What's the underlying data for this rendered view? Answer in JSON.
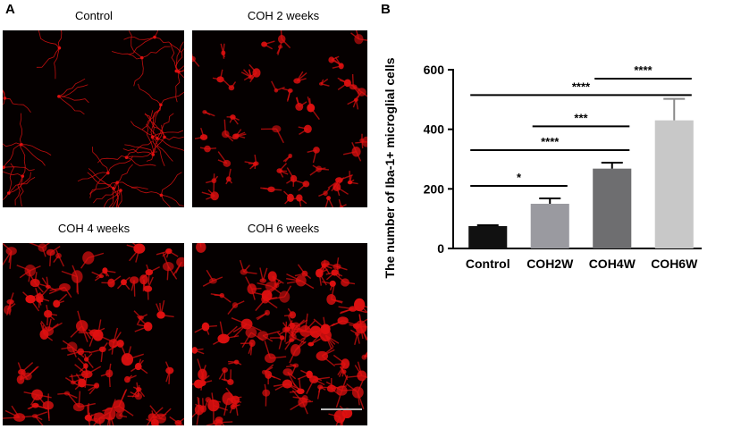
{
  "panel_a": {
    "letter": "A",
    "images": [
      {
        "title": "Control"
      },
      {
        "title": "COH 2 weeks"
      },
      {
        "title": "COH 4  weeks"
      },
      {
        "title": "COH 6 weeks"
      }
    ]
  },
  "panel_b": {
    "letter": "B"
  },
  "colors": {
    "micro_bg": "#050000",
    "stain": "#e01010",
    "bar_control": "#111111",
    "bar_coh2w": "#9a9aa0",
    "bar_coh4w": "#6e6e70",
    "bar_coh6w": "#c8c8c8",
    "scale_bar": "#bbbbbb"
  },
  "chart_data": {
    "type": "bar",
    "categories": [
      "Control",
      "COH2W",
      "COH4W",
      "COH6W"
    ],
    "values": [
      75,
      150,
      268,
      430
    ],
    "errors": [
      3,
      18,
      20,
      72
    ],
    "ylabel": "The number of Iba-1+ microglial cells",
    "ylim": [
      0,
      600
    ],
    "yticks": [
      "0",
      "200",
      "400",
      "600"
    ],
    "grid": false,
    "significance": [
      {
        "from": 0,
        "to": 1,
        "label": "*",
        "level": 210
      },
      {
        "from": 0,
        "to": 2,
        "label": "****",
        "level": 330
      },
      {
        "from": 1,
        "to": 2,
        "label": "***",
        "level": 410
      },
      {
        "from": 0,
        "to": 3,
        "label": "****",
        "level": 515
      },
      {
        "from": 2,
        "to": 3,
        "label": "****",
        "level": 570
      }
    ]
  }
}
